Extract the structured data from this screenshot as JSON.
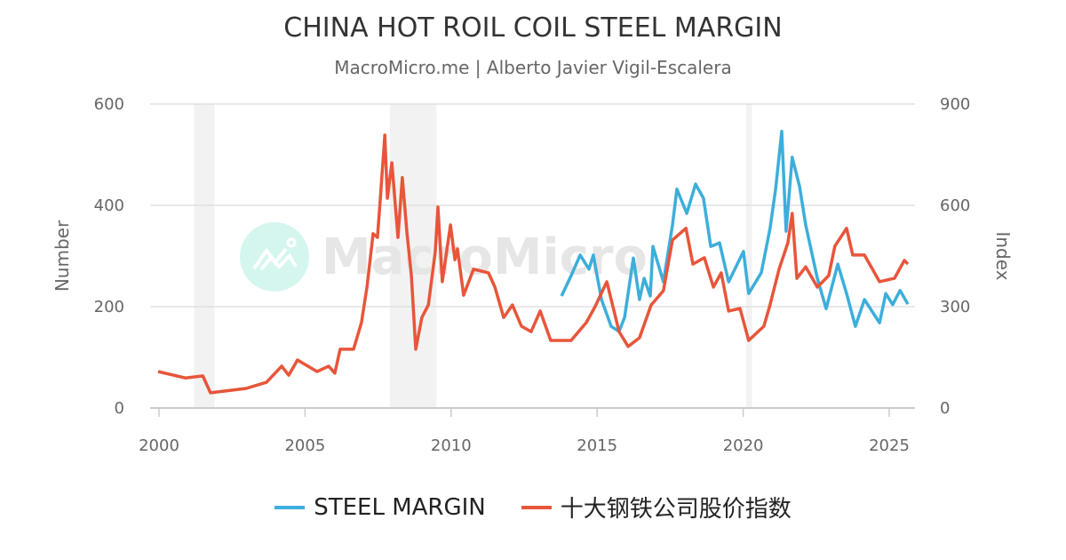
{
  "chart_data": {
    "type": "line",
    "title": "CHINA HOT ROIL COIL STEEL MARGIN",
    "subtitle": "MacroMicro.me | Alberto Javier Vigil-Escalera",
    "watermark": "MacroMicro",
    "xlim": [
      2000,
      2025.8
    ],
    "x_ticks": [
      "2000",
      "2005",
      "2010",
      "2015",
      "2020",
      "2025"
    ],
    "y_left": {
      "label": "Number",
      "ylim": [
        0,
        600
      ],
      "ticks": [
        "0",
        "200",
        "400",
        "600"
      ]
    },
    "y_right": {
      "label": "Index",
      "ylim": [
        0,
        900
      ],
      "ticks": [
        "0",
        "300",
        "600",
        "900"
      ]
    },
    "grid": true,
    "legend_placement": "bottom",
    "shaded_periods": [
      [
        2001.2,
        2001.9
      ],
      [
        2007.9,
        2009.5
      ],
      [
        2020.1,
        2020.3
      ]
    ],
    "series": [
      {
        "name": "STEEL MARGIN",
        "axis": "left",
        "color": "#3DAEDB",
        "x": [
          2013.78,
          2014.11,
          2014.42,
          2014.72,
          2014.87,
          2015.15,
          2015.48,
          2015.75,
          2015.94,
          2016.24,
          2016.45,
          2016.61,
          2016.82,
          2016.91,
          2017.27,
          2017.58,
          2017.73,
          2018.07,
          2018.37,
          2018.64,
          2018.89,
          2019.19,
          2019.5,
          2020.01,
          2020.19,
          2020.62,
          2020.92,
          2021.11,
          2021.32,
          2021.47,
          2021.68,
          2021.93,
          2022.14,
          2022.54,
          2022.84,
          2023.24,
          2023.54,
          2023.84,
          2024.15,
          2024.67,
          2024.88,
          2025.12,
          2025.37,
          2025.64
        ],
        "y": [
          221,
          261,
          302,
          274,
          302,
          214,
          161,
          151,
          179,
          296,
          214,
          256,
          221,
          319,
          249,
          361,
          432,
          384,
          442,
          414,
          319,
          326,
          249,
          309,
          226,
          267,
          354,
          432,
          546,
          349,
          495,
          437,
          361,
          256,
          196,
          284,
          226,
          161,
          214,
          168,
          226,
          204,
          232,
          205
        ]
      },
      {
        "name": "十大钢铁公司股价指数",
        "axis": "right",
        "color": "#E8553A",
        "x": [
          1999.97,
          2000.9,
          2001.5,
          2001.76,
          2002.98,
          2003.68,
          2004.2,
          2004.44,
          2004.74,
          2005.41,
          2005.81,
          2006.02,
          2006.2,
          2006.66,
          2006.93,
          2007.12,
          2007.33,
          2007.48,
          2007.57,
          2007.73,
          2007.82,
          2007.97,
          2008.18,
          2008.33,
          2008.49,
          2008.64,
          2008.79,
          2009.0,
          2009.22,
          2009.46,
          2009.55,
          2009.7,
          2009.98,
          2010.13,
          2010.22,
          2010.43,
          2010.77,
          2011.28,
          2011.5,
          2011.8,
          2012.1,
          2012.41,
          2012.74,
          2013.05,
          2013.41,
          2014.11,
          2014.63,
          2014.93,
          2015.33,
          2015.75,
          2016.06,
          2016.45,
          2016.85,
          2017.27,
          2017.58,
          2018.04,
          2018.28,
          2018.67,
          2018.98,
          2019.25,
          2019.5,
          2019.89,
          2020.19,
          2020.71,
          2020.92,
          2021.23,
          2021.53,
          2021.68,
          2021.84,
          2022.14,
          2022.54,
          2022.93,
          2023.14,
          2023.54,
          2023.75,
          2024.15,
          2024.67,
          2025.18,
          2025.52,
          2025.64
        ],
        "y": [
          108,
          89,
          95,
          45,
          58,
          76,
          124,
          97,
          142,
          108,
          124,
          103,
          174,
          174,
          253,
          358,
          516,
          505,
          611,
          808,
          621,
          726,
          505,
          682,
          516,
          392,
          174,
          268,
          305,
          463,
          595,
          374,
          542,
          439,
          471,
          334,
          411,
          400,
          358,
          268,
          305,
          242,
          226,
          287,
          200,
          200,
          253,
          300,
          374,
          226,
          182,
          208,
          305,
          347,
          497,
          532,
          426,
          445,
          358,
          400,
          287,
          295,
          200,
          242,
          305,
          411,
          489,
          576,
          384,
          418,
          358,
          392,
          479,
          532,
          453,
          453,
          374,
          384,
          437,
          426
        ]
      }
    ]
  }
}
